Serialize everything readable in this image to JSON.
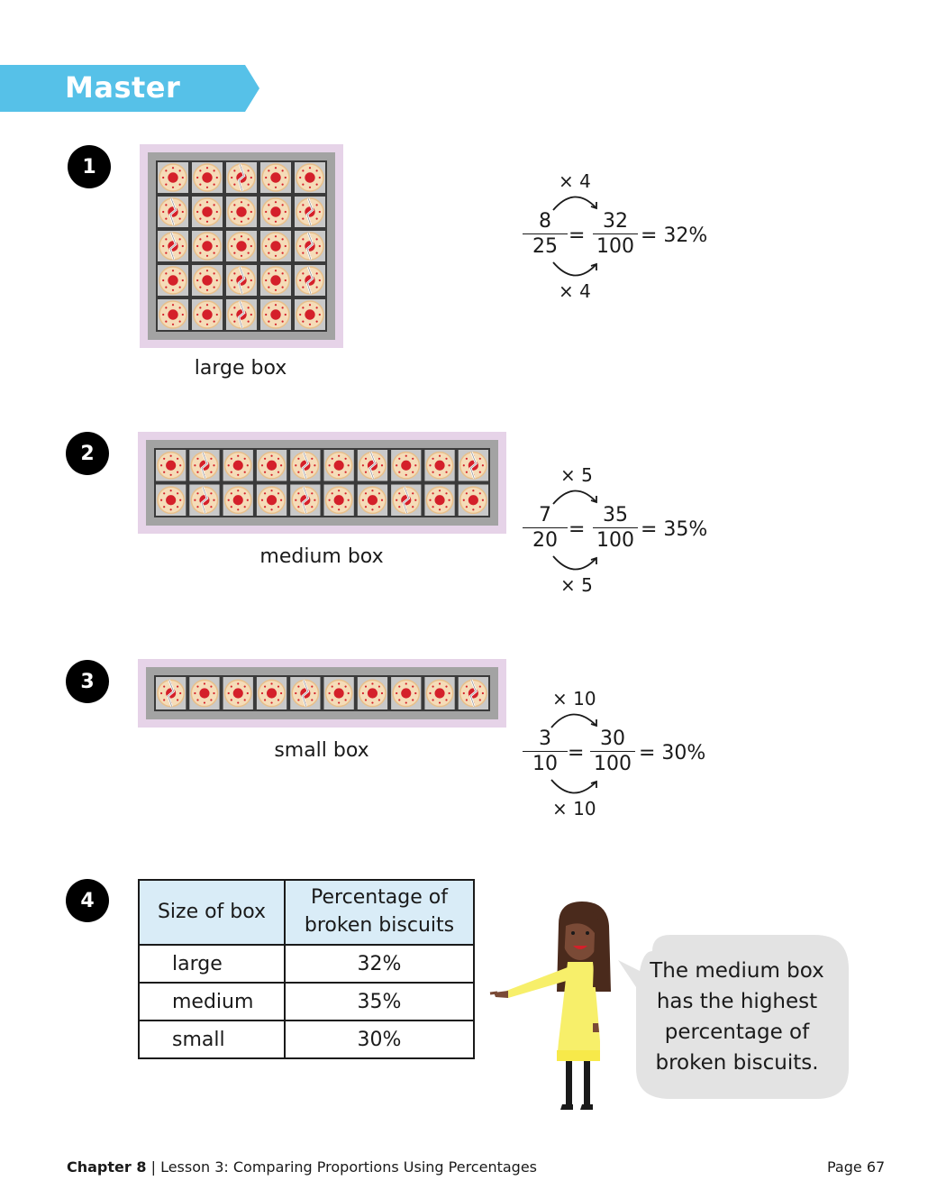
{
  "header": {
    "title": "Master",
    "banner_color": "#56c1e8"
  },
  "questions": [
    {
      "number": "1",
      "caption": "large box",
      "rows": 5,
      "cols": 5,
      "broken": [
        [
          0,
          2
        ],
        [
          1,
          0
        ],
        [
          1,
          4
        ],
        [
          2,
          0
        ],
        [
          2,
          4
        ],
        [
          3,
          2
        ],
        [
          3,
          4
        ],
        [
          4,
          2
        ]
      ],
      "fraction": {
        "num": "8",
        "den": "25",
        "num2": "32",
        "den2": "100",
        "eq": "=",
        "result": "= 32%",
        "mult_top": "× 4",
        "mult_bottom": "× 4"
      }
    },
    {
      "number": "2",
      "caption": "medium box",
      "rows": 2,
      "cols": 10,
      "broken": [
        [
          0,
          1
        ],
        [
          0,
          4
        ],
        [
          0,
          6
        ],
        [
          0,
          9
        ],
        [
          1,
          1
        ],
        [
          1,
          4
        ],
        [
          1,
          7
        ]
      ],
      "fraction": {
        "num": "7",
        "den": "20",
        "num2": "35",
        "den2": "100",
        "eq": "=",
        "result": "= 35%",
        "mult_top": "× 5",
        "mult_bottom": "× 5"
      }
    },
    {
      "number": "3",
      "caption": "small box",
      "rows": 1,
      "cols": 10,
      "broken": [
        [
          0,
          0
        ],
        [
          0,
          4
        ],
        [
          0,
          9
        ]
      ],
      "fraction": {
        "num": "3",
        "den": "10",
        "num2": "30",
        "den2": "100",
        "eq": "=",
        "result": "= 30%",
        "mult_top": "× 10",
        "mult_bottom": "× 10"
      }
    }
  ],
  "question4": {
    "number": "4",
    "table": {
      "headers": [
        "Size of box",
        "Percentage of broken biscuits"
      ],
      "rows": [
        [
          "large",
          "32%"
        ],
        [
          "medium",
          "35%"
        ],
        [
          "small",
          "30%"
        ]
      ]
    },
    "speech": "The medium box has the highest percentage of broken biscuits."
  },
  "footer": {
    "chapter": "Chapter 8",
    "separator": "|",
    "lesson": "Lesson 3: Comparing Proportions Using Percentages",
    "page": "Page 67"
  },
  "colors": {
    "box_outer": "#e6d3e8",
    "box_frame": "#a3a3a3",
    "grid_cell": "#3a3a3a",
    "biscuit": "#f5dcb8",
    "jam": "#d4202a",
    "table_header": "#d9ecf7",
    "bubble": "#e3e3e3"
  }
}
